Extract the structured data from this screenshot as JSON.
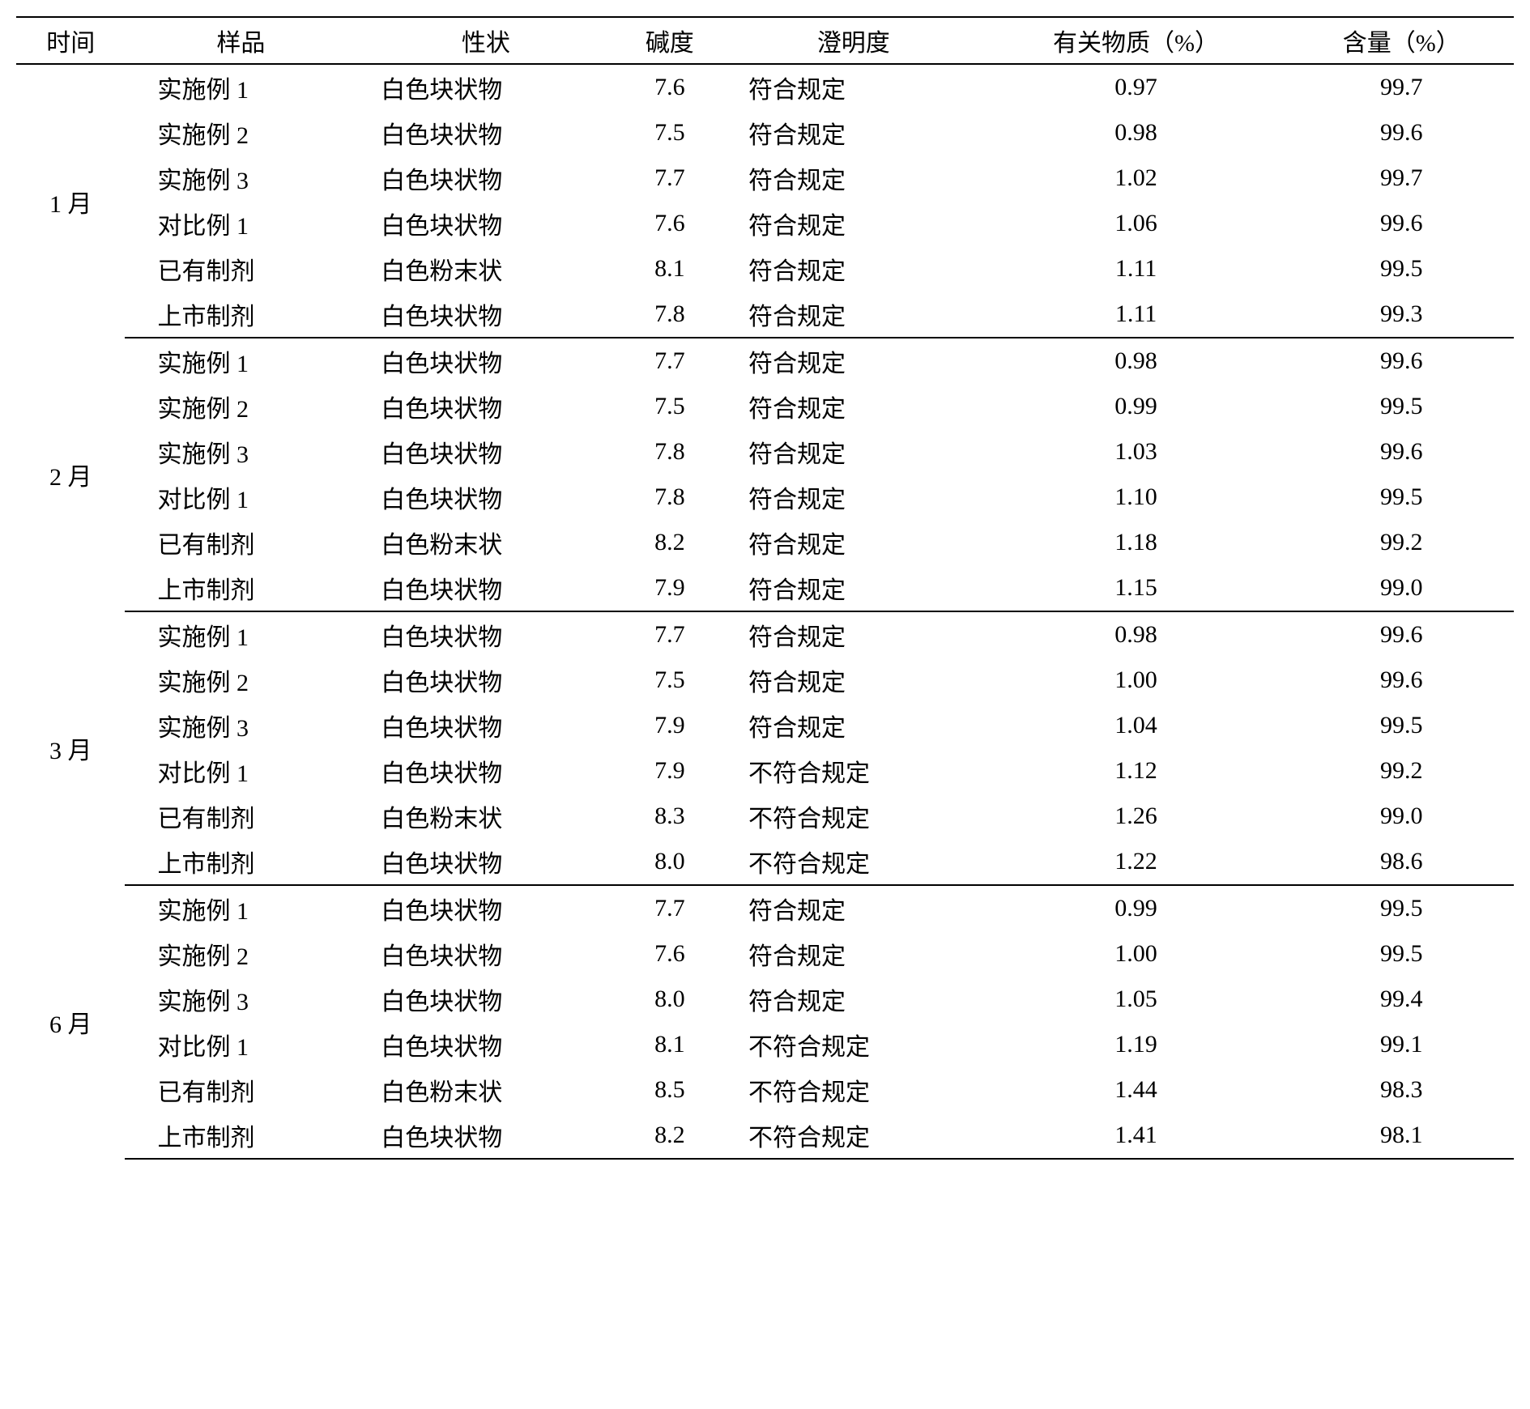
{
  "table": {
    "type": "table",
    "background_color": "#ffffff",
    "text_color": "#000000",
    "border_color": "#000000",
    "font_family": "SimSun",
    "font_size_pt": 22,
    "columns": [
      {
        "key": "time",
        "label": "时间",
        "align": "center"
      },
      {
        "key": "sample",
        "label": "样品",
        "align": "left"
      },
      {
        "key": "appearance",
        "label": "性状",
        "align": "left"
      },
      {
        "key": "alkalinity",
        "label": "碱度",
        "align": "center"
      },
      {
        "key": "clarity",
        "label": "澄明度",
        "align": "left"
      },
      {
        "key": "related",
        "label": "有关物质（%）",
        "align": "center"
      },
      {
        "key": "content",
        "label": "含量（%）",
        "align": "center"
      }
    ],
    "groups": [
      {
        "time": "1 月",
        "rows": [
          {
            "sample": "实施例 1",
            "appearance": "白色块状物",
            "alkalinity": "7.6",
            "clarity": "符合规定",
            "related": "0.97",
            "content": "99.7"
          },
          {
            "sample": "实施例 2",
            "appearance": "白色块状物",
            "alkalinity": "7.5",
            "clarity": "符合规定",
            "related": "0.98",
            "content": "99.6"
          },
          {
            "sample": "实施例 3",
            "appearance": "白色块状物",
            "alkalinity": "7.7",
            "clarity": "符合规定",
            "related": "1.02",
            "content": "99.7"
          },
          {
            "sample": "对比例 1",
            "appearance": "白色块状物",
            "alkalinity": "7.6",
            "clarity": "符合规定",
            "related": "1.06",
            "content": "99.6"
          },
          {
            "sample": "已有制剂",
            "appearance": "白色粉末状",
            "alkalinity": "8.1",
            "clarity": "符合规定",
            "related": "1.11",
            "content": "99.5"
          },
          {
            "sample": "上市制剂",
            "appearance": "白色块状物",
            "alkalinity": "7.8",
            "clarity": "符合规定",
            "related": "1.11",
            "content": "99.3"
          }
        ]
      },
      {
        "time": "2 月",
        "rows": [
          {
            "sample": "实施例 1",
            "appearance": "白色块状物",
            "alkalinity": "7.7",
            "clarity": "符合规定",
            "related": "0.98",
            "content": "99.6"
          },
          {
            "sample": "实施例 2",
            "appearance": "白色块状物",
            "alkalinity": "7.5",
            "clarity": "符合规定",
            "related": "0.99",
            "content": "99.5"
          },
          {
            "sample": "实施例 3",
            "appearance": "白色块状物",
            "alkalinity": "7.8",
            "clarity": "符合规定",
            "related": "1.03",
            "content": "99.6"
          },
          {
            "sample": "对比例 1",
            "appearance": "白色块状物",
            "alkalinity": "7.8",
            "clarity": "符合规定",
            "related": "1.10",
            "content": "99.5"
          },
          {
            "sample": "已有制剂",
            "appearance": "白色粉末状",
            "alkalinity": "8.2",
            "clarity": "符合规定",
            "related": "1.18",
            "content": "99.2"
          },
          {
            "sample": "上市制剂",
            "appearance": "白色块状物",
            "alkalinity": "7.9",
            "clarity": "符合规定",
            "related": "1.15",
            "content": "99.0"
          }
        ]
      },
      {
        "time": "3 月",
        "rows": [
          {
            "sample": "实施例 1",
            "appearance": "白色块状物",
            "alkalinity": "7.7",
            "clarity": "符合规定",
            "related": "0.98",
            "content": "99.6"
          },
          {
            "sample": "实施例 2",
            "appearance": "白色块状物",
            "alkalinity": "7.5",
            "clarity": "符合规定",
            "related": "1.00",
            "content": "99.6"
          },
          {
            "sample": "实施例 3",
            "appearance": "白色块状物",
            "alkalinity": "7.9",
            "clarity": "符合规定",
            "related": "1.04",
            "content": "99.5"
          },
          {
            "sample": "对比例 1",
            "appearance": "白色块状物",
            "alkalinity": "7.9",
            "clarity": "不符合规定",
            "related": "1.12",
            "content": "99.2"
          },
          {
            "sample": "已有制剂",
            "appearance": "白色粉末状",
            "alkalinity": "8.3",
            "clarity": "不符合规定",
            "related": "1.26",
            "content": "99.0"
          },
          {
            "sample": "上市制剂",
            "appearance": "白色块状物",
            "alkalinity": "8.0",
            "clarity": "不符合规定",
            "related": "1.22",
            "content": "98.6"
          }
        ]
      },
      {
        "time": "6 月",
        "rows": [
          {
            "sample": "实施例 1",
            "appearance": "白色块状物",
            "alkalinity": "7.7",
            "clarity": "符合规定",
            "related": "0.99",
            "content": "99.5"
          },
          {
            "sample": "实施例 2",
            "appearance": "白色块状物",
            "alkalinity": "7.6",
            "clarity": "符合规定",
            "related": "1.00",
            "content": "99.5"
          },
          {
            "sample": "实施例 3",
            "appearance": "白色块状物",
            "alkalinity": "8.0",
            "clarity": "符合规定",
            "related": "1.05",
            "content": "99.4"
          },
          {
            "sample": "对比例 1",
            "appearance": "白色块状物",
            "alkalinity": "8.1",
            "clarity": "不符合规定",
            "related": "1.19",
            "content": "99.1"
          },
          {
            "sample": "已有制剂",
            "appearance": "白色粉末状",
            "alkalinity": "8.5",
            "clarity": "不符合规定",
            "related": "1.44",
            "content": "98.3"
          },
          {
            "sample": "上市制剂",
            "appearance": "白色块状物",
            "alkalinity": "8.2",
            "clarity": "不符合规定",
            "related": "1.41",
            "content": "98.1"
          }
        ]
      }
    ]
  }
}
